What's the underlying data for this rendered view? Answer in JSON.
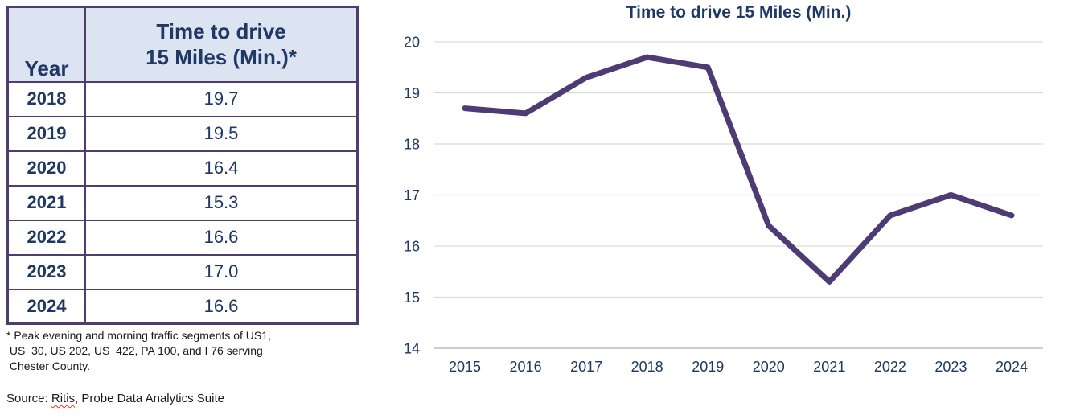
{
  "colors": {
    "navy_text": "#1f3864",
    "table_border": "#4f3d6e",
    "header_fill": "#dce4f2",
    "line_purple": "#4e3b73",
    "gridline": "#d9d9d9",
    "axis_line": "#c6c6c6",
    "body_text": "#1a1a1a",
    "squiggle_red": "#e0392f"
  },
  "table": {
    "headers": {
      "year": "Year",
      "time": "Time to drive\n15 Miles (Min.)*"
    },
    "rows": [
      {
        "year": "2018",
        "value": "19.7"
      },
      {
        "year": "2019",
        "value": "19.5"
      },
      {
        "year": "2020",
        "value": "16.4"
      },
      {
        "year": "2021",
        "value": "15.3"
      },
      {
        "year": "2022",
        "value": "16.6"
      },
      {
        "year": "2023",
        "value": "17.0"
      },
      {
        "year": "2024",
        "value": "16.6"
      }
    ]
  },
  "footnote": "* Peak evening and morning traffic segments of US1,\n US  30, US 202, US  422, PA 100, and I 76 serving\n Chester County.",
  "source": {
    "prefix": "Source: ",
    "misspelled_word": "Ritis",
    "suffix": ", Probe Data Analytics Suite"
  },
  "chart_data": {
    "type": "line",
    "title": "Time to drive 15 Miles (Min.)",
    "categories": [
      "2015",
      "2016",
      "2017",
      "2018",
      "2019",
      "2020",
      "2021",
      "2022",
      "2023",
      "2024"
    ],
    "values": [
      18.7,
      18.6,
      19.3,
      19.7,
      19.5,
      16.4,
      15.3,
      16.6,
      17.0,
      16.6
    ],
    "xlabel": "",
    "ylabel": "",
    "ylim": [
      14,
      20
    ],
    "ytick_step": 1,
    "grid": true,
    "legend": "none",
    "line_color": "#4e3b73",
    "line_width": 7
  }
}
